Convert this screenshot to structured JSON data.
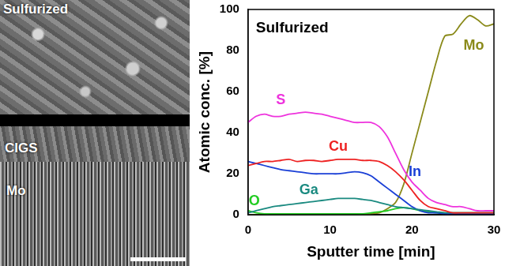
{
  "sem_image": {
    "label": "Sulfurized",
    "layer_labels": [
      "CIGS",
      "Mo"
    ]
  },
  "chart_data": {
    "type": "line",
    "title": "Sulfurized",
    "xlabel": "Sputter time [min]",
    "ylabel": "Atomic conc. [%]",
    "x": [
      0,
      1,
      2,
      3,
      4,
      5,
      6,
      7,
      8,
      9,
      10,
      11,
      12,
      13,
      14,
      15,
      16,
      17,
      18,
      19,
      20,
      21,
      22,
      23,
      24,
      25,
      26,
      27,
      28,
      29,
      30
    ],
    "xlim": [
      0,
      30
    ],
    "xticks": [
      0,
      10,
      20,
      30
    ],
    "ylim": [
      0,
      100
    ],
    "yticks": [
      0,
      20,
      40,
      60,
      80,
      100
    ],
    "grid": false,
    "series": [
      {
        "name": "S",
        "color": "#ee33dd",
        "values": [
          45,
          48,
          49,
          48,
          48,
          49,
          49.5,
          50,
          49.5,
          49,
          48,
          47,
          46,
          45,
          45,
          45,
          43,
          38,
          30,
          22,
          16,
          12,
          8,
          6,
          5,
          4,
          4,
          3,
          2,
          2,
          2
        ]
      },
      {
        "name": "Cu",
        "color": "#ee2222",
        "values": [
          24,
          25,
          26,
          26,
          26.5,
          27,
          26,
          26.5,
          26.5,
          26,
          26.5,
          27,
          27,
          27,
          26.5,
          26.5,
          26,
          24,
          21,
          17,
          12,
          7,
          4,
          3,
          2,
          1,
          1,
          1,
          1,
          1,
          1
        ]
      },
      {
        "name": "Ga",
        "color": "#1a8a80",
        "values": [
          1,
          2,
          3,
          4,
          4.5,
          5,
          5.5,
          6,
          6.5,
          7,
          7.5,
          8,
          8,
          8,
          7.5,
          7,
          6,
          5,
          4,
          3.5,
          3,
          2.5,
          2,
          1.5,
          1,
          1,
          1,
          1,
          1,
          1,
          1
        ]
      },
      {
        "name": "In",
        "color": "#1a3fd6",
        "values": [
          26,
          25,
          24,
          23,
          22,
          21.5,
          21,
          20.5,
          20,
          20,
          20,
          20,
          20.5,
          21,
          20.5,
          19,
          16,
          13,
          10,
          7,
          4,
          2,
          1,
          1,
          0.5,
          0.5,
          0.5,
          0.5,
          0.5,
          0.5,
          0.5
        ]
      },
      {
        "name": "O",
        "color": "#22cc22",
        "values": [
          2,
          1,
          0.5,
          0.5,
          0.5,
          0.5,
          0.5,
          0.5,
          0.5,
          0.5,
          0.5,
          0.5,
          0.5,
          0.5,
          0.5,
          1,
          1.5,
          2,
          3,
          3.5,
          3,
          2,
          1.5,
          1,
          1,
          1,
          1,
          1,
          1,
          1,
          1
        ]
      },
      {
        "name": "Mo",
        "color": "#8a8a1a",
        "values": [
          0,
          0,
          0,
          0,
          0,
          0,
          0,
          0,
          0,
          0,
          0,
          0,
          0,
          0,
          0,
          0.5,
          1,
          3,
          6,
          15,
          30,
          45,
          60,
          75,
          87,
          88,
          93,
          97,
          95,
          92,
          93
        ]
      }
    ]
  }
}
